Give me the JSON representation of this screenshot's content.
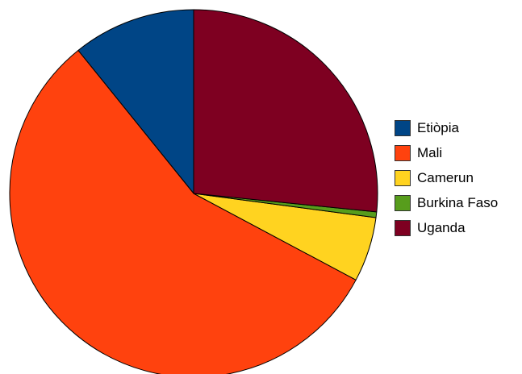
{
  "chart_data": {
    "type": "pie",
    "title": "",
    "categories": [
      "Etiòpia",
      "Mali",
      "Camerun",
      "Burkina Faso",
      "Uganda"
    ],
    "values": [
      10.8,
      56.4,
      5.7,
      0.5,
      26.6
    ],
    "colors": [
      "#004586",
      "#ff420e",
      "#ffd320",
      "#579d1c",
      "#7e0021"
    ],
    "start": "12 o'clock",
    "direction": "counterclockwise",
    "legend_position": "right",
    "border_color": "#000000"
  }
}
